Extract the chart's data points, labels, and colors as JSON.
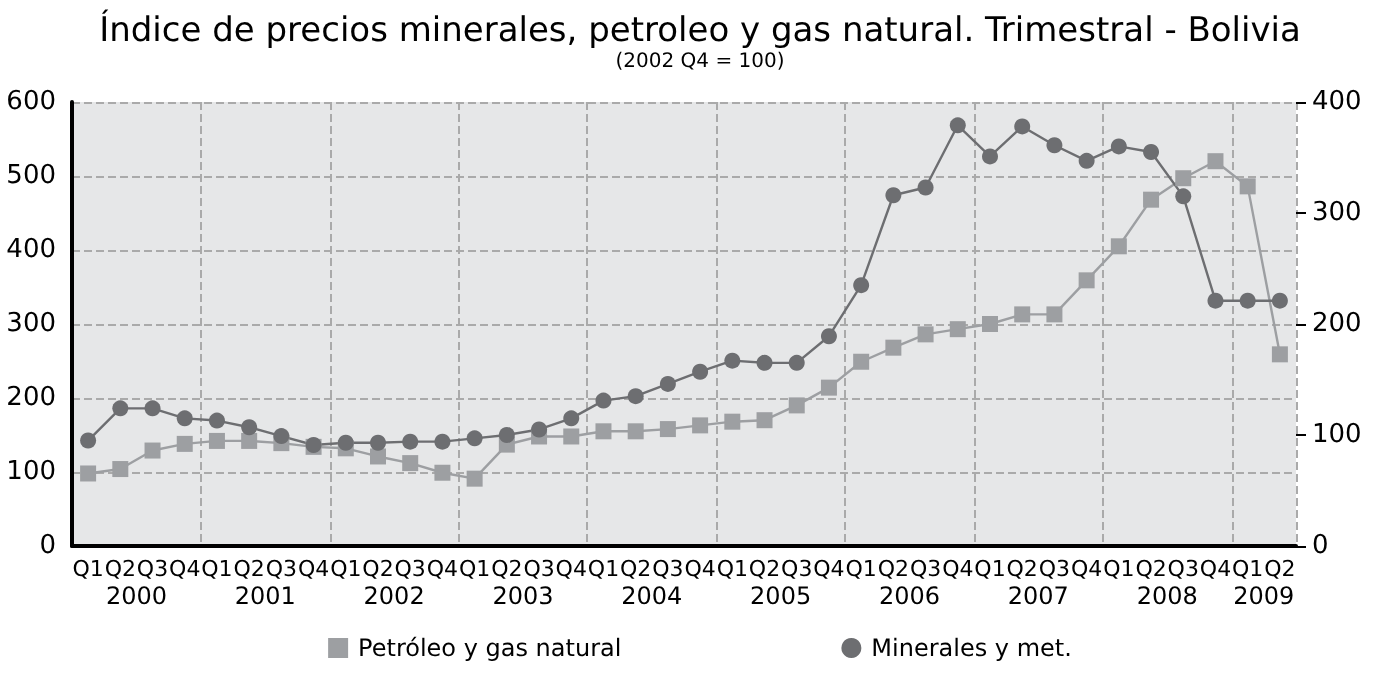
{
  "chart_data": {
    "type": "line",
    "title": "Índice de precios minerales, petroleo y gas natural. Trimestral - Bolivia",
    "subtitle": "(2002 Q4 = 100)",
    "categories": [
      "Q1",
      "Q2",
      "Q3",
      "Q4",
      "Q1",
      "Q2",
      "Q3",
      "Q4",
      "Q1",
      "Q2",
      "Q3",
      "Q4",
      "Q1",
      "Q2",
      "Q3",
      "Q4",
      "Q1",
      "Q2",
      "Q3",
      "Q4",
      "Q1",
      "Q2",
      "Q3",
      "Q4",
      "Q1",
      "Q2",
      "Q3",
      "Q4",
      "Q1",
      "Q2",
      "Q3",
      "Q4",
      "Q1",
      "Q2",
      "Q3",
      "Q4",
      "Q1",
      "Q2"
    ],
    "annotations": [
      "2000",
      "2001",
      "2002",
      "2003",
      "2004",
      "2005",
      "2006",
      "2007",
      "2008",
      "2009"
    ],
    "series": [
      {
        "name": "Petróleo y gas natural",
        "color": "#9d9fa2",
        "marker": "square",
        "values": [
          98,
          104,
          129,
          138,
          142,
          142,
          139,
          134,
          132,
          121,
          112,
          99,
          91,
          137,
          148,
          148,
          155,
          155,
          158,
          163,
          168,
          170,
          190,
          214,
          249,
          268,
          286,
          293,
          300,
          313,
          313,
          359,
          405,
          468,
          497,
          520,
          486,
          259
        ]
      },
      {
        "name": "Minerales y met.",
        "color": "#6d6e71",
        "marker": "circle",
        "axis": "y2",
        "values": [
          95,
          124,
          124,
          115,
          113,
          107,
          99,
          91,
          93,
          93,
          94,
          94,
          97,
          100,
          105,
          115,
          131,
          135,
          146,
          157,
          167,
          165,
          165,
          189,
          235,
          316,
          323,
          379,
          351,
          378,
          361,
          347,
          360,
          355,
          315,
          221,
          221,
          221
        ]
      }
    ],
    "ylim": [
      0,
      600
    ],
    "yticks": [
      0,
      100,
      200,
      300,
      400,
      500,
      600
    ],
    "y2lim": [
      0,
      400
    ],
    "y2ticks": [
      0,
      100,
      200,
      300,
      400
    ],
    "grid": true,
    "legend": "bottom",
    "line_style": "solid"
  }
}
